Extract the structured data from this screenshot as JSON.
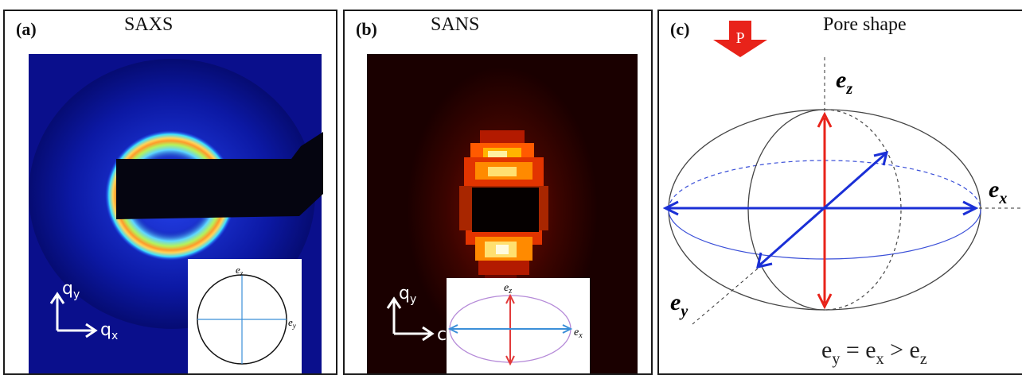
{
  "panels": {
    "a": {
      "label": "(a)",
      "title": "SAXS",
      "axes": {
        "y": "q",
        "y_sub": "y",
        "x": "q",
        "x_sub": "x"
      },
      "inset": {
        "top": "e",
        "top_sub": "z",
        "right": "e",
        "right_sub": "y"
      }
    },
    "b": {
      "label": "(b)",
      "title": "SANS",
      "axes": {
        "y": "q",
        "y_sub": "y",
        "x": "c"
      },
      "inset": {
        "top": "e",
        "top_sub": "z",
        "right": "e",
        "right_sub": "x"
      }
    },
    "c": {
      "label": "(c)",
      "title": "Pore shape",
      "arrow_label": "P",
      "ez": "e",
      "ez_sub": "z",
      "ex": "e",
      "ex_sub": "x",
      "ey": "e",
      "ey_sub": "y",
      "relation": {
        "a": "e",
        "a_sub": "y",
        "eq": " = ",
        "b": "e",
        "b_sub": "x",
        "gt": " > ",
        "c": "e",
        "c_sub": "z"
      }
    }
  },
  "colors": {
    "saxs_bg": "#0a0f8c",
    "sans_bg": "#1a0000",
    "red_arrow": "#e8231a",
    "blue_arrow": "#1a2fd6"
  }
}
